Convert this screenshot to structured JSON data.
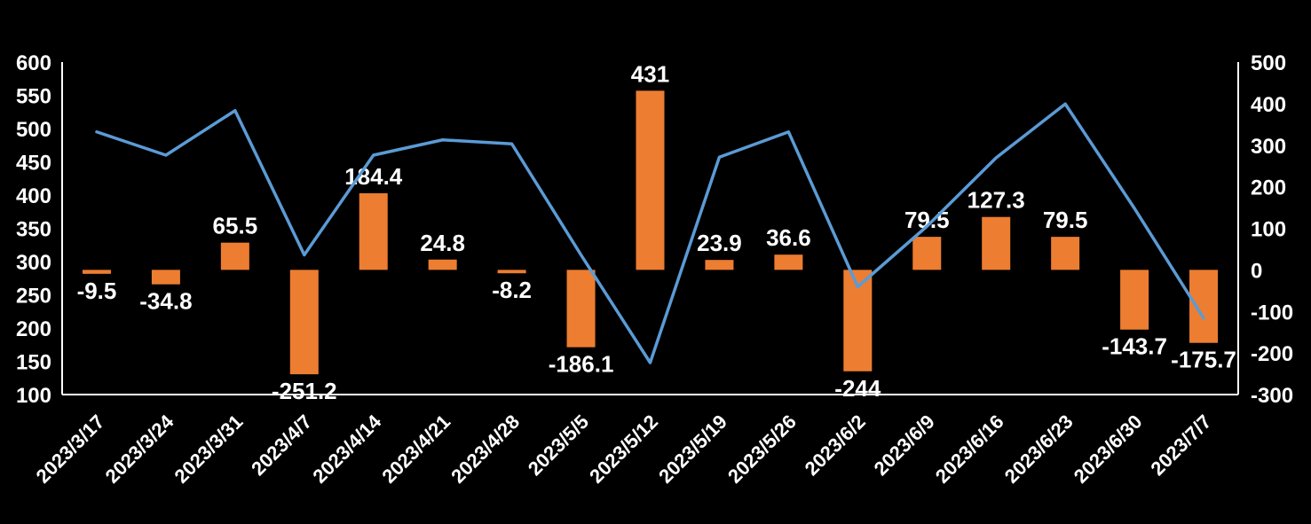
{
  "chart_data": {
    "type": "combo",
    "title": "",
    "background": "#000000",
    "text_color": "#FFFFFF",
    "grid": false,
    "legend": "none",
    "categories": [
      "2023/3/17",
      "2023/3/24",
      "2023/3/31",
      "2023/4/7",
      "2023/4/14",
      "2023/4/21",
      "2023/4/28",
      "2023/5/5",
      "2023/5/12",
      "2023/5/19",
      "2023/5/26",
      "2023/6/2",
      "2023/6/9",
      "2023/6/16",
      "2023/6/23",
      "2023/6/30",
      "2023/7/7"
    ],
    "series": [
      {
        "name": "bar-series",
        "type": "bar",
        "axis": "right",
        "color": "#ED7D31",
        "values": [
          -9.5,
          -34.8,
          65.5,
          -251.2,
          184.4,
          24.8,
          -8.2,
          -186.1,
          431,
          23.9,
          36.6,
          -244,
          79.5,
          127.3,
          79.5,
          -143.7,
          -175.7
        ],
        "labels": [
          "-9.5",
          "-34.8",
          "65.5",
          "-251.2",
          "184.4",
          "24.8",
          "-8.2",
          "-186.1",
          "431",
          "23.9",
          "36.6",
          "-244",
          "79.5",
          "127.3",
          "79.5",
          "-143.7",
          "-175.7"
        ]
      },
      {
        "name": "line-series",
        "type": "line",
        "axis": "left",
        "color": "#5B9BD5",
        "values": [
          495,
          460,
          527,
          310,
          460,
          483,
          477,
          310,
          148,
          457,
          495,
          262,
          353,
          456,
          537,
          380,
          215
        ]
      }
    ],
    "left_axis": {
      "min": 100,
      "max": 600,
      "step": 50,
      "ticks": [
        "600",
        "550",
        "500",
        "450",
        "400",
        "350",
        "300",
        "250",
        "200",
        "150",
        "100"
      ]
    },
    "right_axis": {
      "min": -300,
      "max": 500,
      "step": 100,
      "ticks": [
        "500",
        "400",
        "300",
        "200",
        "100",
        "0",
        "-100",
        "-200",
        "-300"
      ]
    }
  }
}
